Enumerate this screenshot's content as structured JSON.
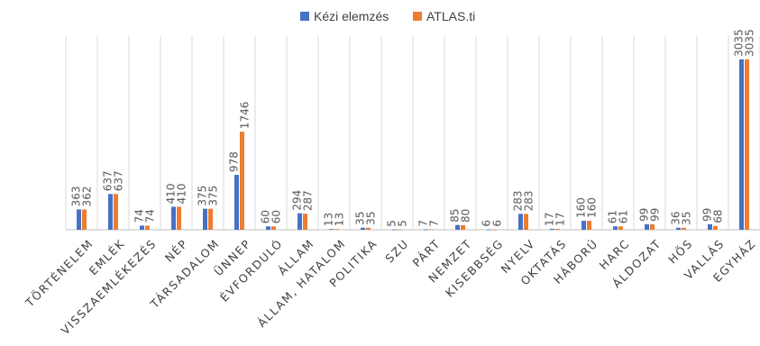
{
  "chart_data": {
    "type": "bar",
    "categories": [
      "TÖRTÉNELEM",
      "EMLÉK",
      "VISSZAEMLÉKEZÉS",
      "NÉP",
      "TÁRSADALOM",
      "ÜNNEP",
      "ÉVFORDULÓ",
      "ÁLLAM",
      "ÁLLAM, HATALOM",
      "POLITIKA",
      "SZU",
      "PÁRT",
      "NEMZET",
      "KISEBBSÉG",
      "NYELV",
      "OKTATÁS",
      "HÁBORÚ",
      "HARC",
      "ÁLDOZAT",
      "HŐS",
      "VALLÁS",
      "EGYHÁZ"
    ],
    "series": [
      {
        "name": "Kézi elemzés",
        "values": [
          363,
          637,
          74,
          410,
          375,
          978,
          60,
          294,
          13,
          35,
          5,
          7,
          85,
          6,
          283,
          17,
          160,
          61,
          99,
          36,
          99,
          3035
        ],
        "color": "#4472C4"
      },
      {
        "name": "ATLAS.ti",
        "values": [
          362,
          637,
          74,
          410,
          375,
          1746,
          60,
          287,
          13,
          35,
          5,
          7,
          80,
          6,
          283,
          17,
          160,
          61,
          99,
          35,
          68,
          3035
        ],
        "color": "#ED7D31"
      }
    ],
    "ylim": [
      0,
      3450
    ],
    "grid": "vertical category separators",
    "legend": "top-center",
    "data_labels": true
  }
}
